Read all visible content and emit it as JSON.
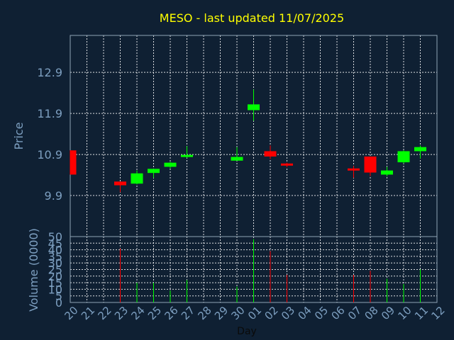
{
  "chart_data": {
    "type": "candlestick",
    "title": "MESO - last updated 11/07/2025",
    "xlabel": "Day",
    "ylabel": "Price",
    "volume_label": "Volume (0000)",
    "grid": true,
    "x_tick_labels": [
      "20",
      "21",
      "22",
      "23",
      "24",
      "25",
      "26",
      "27",
      "28",
      "29",
      "30",
      "01",
      "02",
      "03",
      "04",
      "05",
      "06",
      "07",
      "08",
      "09",
      "10",
      "11",
      "12"
    ],
    "price_ticks": [
      9.9,
      10.9,
      11.9,
      12.9
    ],
    "price_tick_labels": [
      "9.9",
      "10.9",
      "11.9",
      "12.9"
    ],
    "price_range": [
      8.9,
      13.8
    ],
    "volume_ticks": [
      0,
      5,
      10,
      15,
      20,
      25,
      30,
      35,
      40,
      45,
      50
    ],
    "volume_tick_labels": [
      "0",
      "5",
      "10",
      "15",
      "20",
      "25",
      "30",
      "35",
      "40",
      "45",
      "50"
    ],
    "volume_range": [
      0,
      50
    ],
    "candles": [
      {
        "day": "20",
        "open": 11.0,
        "high": 11.0,
        "low": 10.41,
        "close": 10.41,
        "volume": 0
      },
      {
        "day": "23",
        "open": 10.24,
        "high": 10.24,
        "low": 9.98,
        "close": 10.15,
        "volume": 41
      },
      {
        "day": "24",
        "open": 10.19,
        "high": 10.51,
        "low": 10.17,
        "close": 10.44,
        "volume": 15
      },
      {
        "day": "25",
        "open": 10.45,
        "high": 10.55,
        "low": 10.33,
        "close": 10.55,
        "volume": 15
      },
      {
        "day": "26",
        "open": 10.6,
        "high": 10.72,
        "low": 10.56,
        "close": 10.7,
        "volume": 9
      },
      {
        "day": "27",
        "open": 10.85,
        "high": 11.1,
        "low": 10.82,
        "close": 10.89,
        "volume": 17
      },
      {
        "day": "30",
        "open": 10.75,
        "high": 11.08,
        "low": 10.75,
        "close": 10.84,
        "volume": 12
      },
      {
        "day": "01",
        "open": 11.98,
        "high": 12.48,
        "low": 11.72,
        "close": 12.12,
        "volume": 48
      },
      {
        "day": "02",
        "open": 10.98,
        "high": 11.12,
        "low": 10.79,
        "close": 10.85,
        "volume": 39
      },
      {
        "day": "03",
        "open": 10.68,
        "high": 10.7,
        "low": 10.59,
        "close": 10.66,
        "volume": 21
      },
      {
        "day": "07",
        "open": 10.56,
        "high": 10.62,
        "low": 10.33,
        "close": 10.53,
        "volume": 21
      },
      {
        "day": "08",
        "open": 10.85,
        "high": 10.85,
        "low": 10.37,
        "close": 10.46,
        "volume": 24
      },
      {
        "day": "09",
        "open": 10.41,
        "high": 10.6,
        "low": 10.37,
        "close": 10.51,
        "volume": 18
      },
      {
        "day": "10",
        "open": 10.71,
        "high": 11.0,
        "low": 10.68,
        "close": 10.98,
        "volume": 14
      },
      {
        "day": "11",
        "open": 10.98,
        "high": 11.12,
        "low": 10.8,
        "close": 11.08,
        "volume": 25
      }
    ],
    "colors": {
      "background": "#0f2033",
      "axis_text": "#7d9fc0",
      "title": "#ffff00",
      "frame": "#8fa3b6",
      "up": "#00ff00",
      "down": "#ff0000",
      "grid": "#ffffff"
    }
  }
}
